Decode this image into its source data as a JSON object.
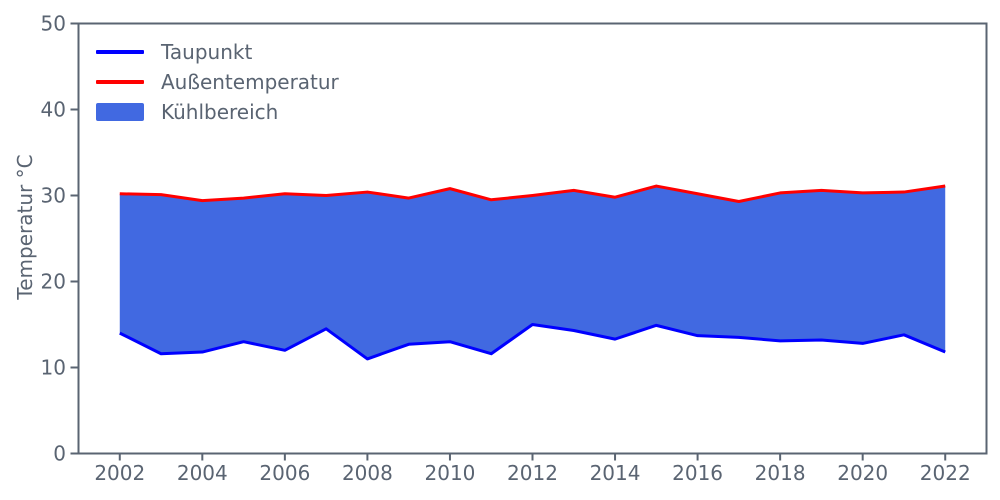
{
  "figure": {
    "background": "#ffffff",
    "axis_color": "#5a6472",
    "text_color": "#5a6472"
  },
  "chart_data": {
    "type": "area",
    "title": "",
    "xlabel": "",
    "ylabel": "Temperatur °C",
    "x": [
      2002,
      2003,
      2004,
      2005,
      2006,
      2007,
      2008,
      2009,
      2010,
      2011,
      2012,
      2013,
      2014,
      2015,
      2016,
      2017,
      2018,
      2019,
      2020,
      2021,
      2022
    ],
    "series": [
      {
        "name": "Taupunkt",
        "color": "#0000ff",
        "linewidth": 3,
        "values": [
          14.0,
          11.6,
          11.8,
          13.0,
          12.0,
          14.5,
          11.0,
          12.7,
          13.0,
          11.6,
          15.0,
          14.3,
          13.3,
          14.9,
          13.7,
          13.5,
          13.1,
          13.2,
          12.8,
          13.8,
          11.8
        ]
      },
      {
        "name": "Außentemperatur",
        "color": "#ff0000",
        "linewidth": 3,
        "values": [
          30.2,
          30.1,
          29.4,
          29.7,
          30.2,
          30.0,
          30.4,
          29.7,
          30.8,
          29.5,
          30.0,
          30.6,
          29.8,
          31.1,
          30.2,
          29.3,
          30.3,
          30.6,
          30.3,
          30.4,
          31.1
        ]
      }
    ],
    "fill_between": {
      "name": "Kühlbereich",
      "color": "#4169e1",
      "lower": "Taupunkt",
      "upper": "Außentemperatur"
    },
    "xlim": [
      2001,
      2023
    ],
    "ylim": [
      0,
      50
    ],
    "xticks": [
      2002,
      2004,
      2006,
      2008,
      2010,
      2012,
      2014,
      2016,
      2018,
      2020,
      2022
    ],
    "yticks": [
      0,
      10,
      20,
      30,
      40,
      50
    ],
    "grid": false,
    "legend_position": "upper left",
    "legend": [
      {
        "label": "Taupunkt",
        "swatch": "line",
        "color": "#0000ff"
      },
      {
        "label": "Außentemperatur",
        "swatch": "line",
        "color": "#ff0000"
      },
      {
        "label": "Kühlbereich",
        "swatch": "patch",
        "color": "#4169e1"
      }
    ]
  }
}
